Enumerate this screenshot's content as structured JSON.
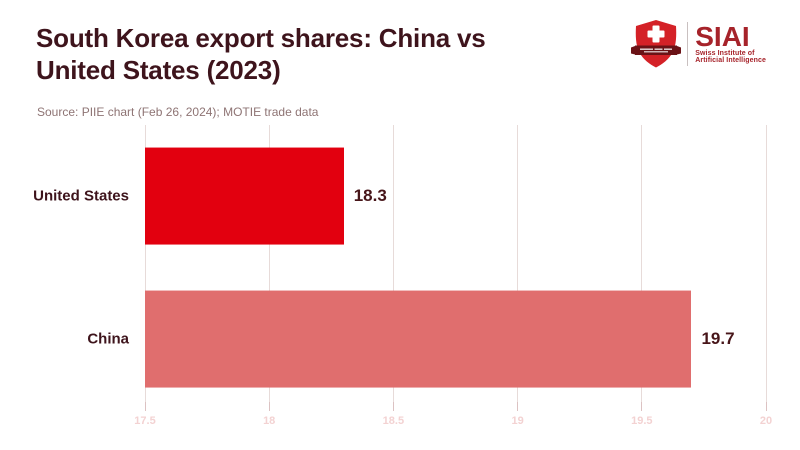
{
  "header": {
    "title_line1": "South Korea export shares: China vs",
    "title_line2": "United States (2023)",
    "source": "Source: PIIE chart (Feb 26, 2024); MOTIE trade data"
  },
  "logo": {
    "acronym": "SIAI",
    "subtitle_line1": "Swiss Institute of",
    "subtitle_line2": "Artificial Intelligence"
  },
  "chart_data": {
    "type": "bar",
    "orientation": "horizontal",
    "title": "South Korea export shares: China vs United States (2023)",
    "categories": [
      "United States",
      "China"
    ],
    "values": [
      18.3,
      19.7
    ],
    "value_labels": [
      "18.3",
      "19.7"
    ],
    "bar_colors": [
      "#E2000F",
      "#E06E6E"
    ],
    "xlim": [
      17.5,
      20
    ],
    "x_ticks": [
      17.5,
      18,
      18.5,
      19,
      19.5,
      20
    ],
    "x_tick_labels": [
      "17.5",
      "18",
      "18.5",
      "19",
      "19.5",
      "20"
    ],
    "grid": true,
    "legend": false,
    "source_note": "Source: PIIE chart (Feb 26, 2024); MOTIE trade data"
  },
  "colors": {
    "title": "#3E141C",
    "source_text": "#8E7474",
    "gridline": "#E7DBD9",
    "tick_mark": "#DCC2C2",
    "tick_label": "#F3D2D2",
    "value_label": "#471519",
    "category_label": "#3E141C",
    "logo_red": "#A6232A",
    "shield_red": "#D42127",
    "banner_dark": "#6B1216"
  }
}
